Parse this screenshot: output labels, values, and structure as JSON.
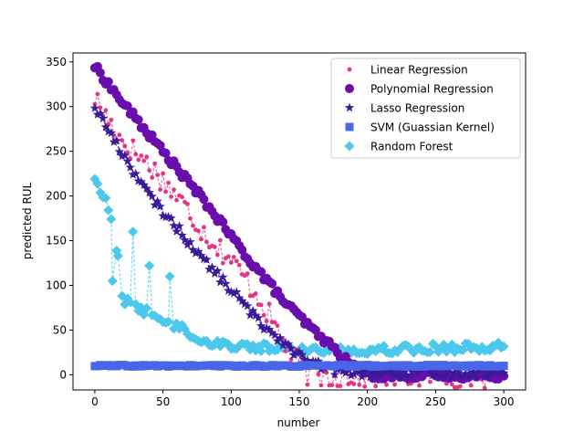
{
  "chart_data": {
    "type": "scatter",
    "xlabel": "number",
    "ylabel": "predicted RUL",
    "xlim": [
      -16,
      316
    ],
    "ylim": [
      -17,
      360
    ],
    "xticks": [
      0,
      50,
      100,
      150,
      200,
      250,
      300
    ],
    "yticks": [
      0,
      50,
      100,
      150,
      200,
      250,
      300,
      350
    ],
    "legend_position": "top-right",
    "series": [
      {
        "name": "Linear Regression",
        "marker": "dot",
        "color": "#e8347f",
        "line_style": "dashed",
        "knots": [
          [
            0,
            310
          ],
          [
            10,
            285
          ],
          [
            20,
            262
          ],
          [
            40,
            235
          ],
          [
            60,
            200
          ],
          [
            80,
            160
          ],
          [
            100,
            128
          ],
          [
            120,
            88
          ],
          [
            130,
            60
          ],
          [
            145,
            20
          ],
          [
            155,
            3
          ],
          [
            160,
            -1
          ],
          [
            300,
            -1
          ]
        ],
        "noise": 14
      },
      {
        "name": "Polynomial Regression",
        "marker": "circle",
        "color": "#6a0dad",
        "line_style": "solid",
        "knots": [
          [
            0,
            345
          ],
          [
            20,
            305
          ],
          [
            50,
            250
          ],
          [
            80,
            195
          ],
          [
            110,
            135
          ],
          [
            140,
            80
          ],
          [
            160,
            50
          ],
          [
            175,
            30
          ],
          [
            185,
            15
          ],
          [
            195,
            5
          ],
          [
            205,
            -1
          ],
          [
            300,
            -1
          ]
        ],
        "noise": 4
      },
      {
        "name": "Lasso Regression",
        "marker": "star",
        "color": "#3b1a9a",
        "line_style": "dashed",
        "knots": [
          [
            0,
            300
          ],
          [
            15,
            260
          ],
          [
            40,
            200
          ],
          [
            60,
            165
          ],
          [
            80,
            128
          ],
          [
            100,
            95
          ],
          [
            120,
            60
          ],
          [
            140,
            35
          ],
          [
            155,
            15
          ],
          [
            175,
            5
          ],
          [
            190,
            2
          ],
          [
            300,
            2
          ]
        ],
        "noise": 5
      },
      {
        "name": "SVM (Guassian Kernel)",
        "marker": "square",
        "color": "#4a66e8",
        "line_style": "none",
        "knots": [
          [
            0,
            10
          ],
          [
            300,
            10
          ]
        ],
        "noise": 1
      },
      {
        "name": "Random Forest",
        "marker": "diamond",
        "color": "#4cc8ec",
        "line_style": "dashed",
        "knots": [
          [
            0,
            220
          ],
          [
            5,
            205
          ],
          [
            10,
            185
          ],
          [
            15,
            150
          ],
          [
            20,
            85
          ],
          [
            40,
            68
          ],
          [
            60,
            55
          ],
          [
            80,
            37
          ],
          [
            100,
            33
          ],
          [
            150,
            28
          ],
          [
            200,
            28
          ],
          [
            250,
            30
          ],
          [
            300,
            31
          ]
        ],
        "noise": 5,
        "outliers": [
          [
            28,
            160
          ],
          [
            40,
            122
          ],
          [
            55,
            110
          ],
          [
            17,
            133
          ],
          [
            13,
            105
          ]
        ]
      }
    ]
  }
}
